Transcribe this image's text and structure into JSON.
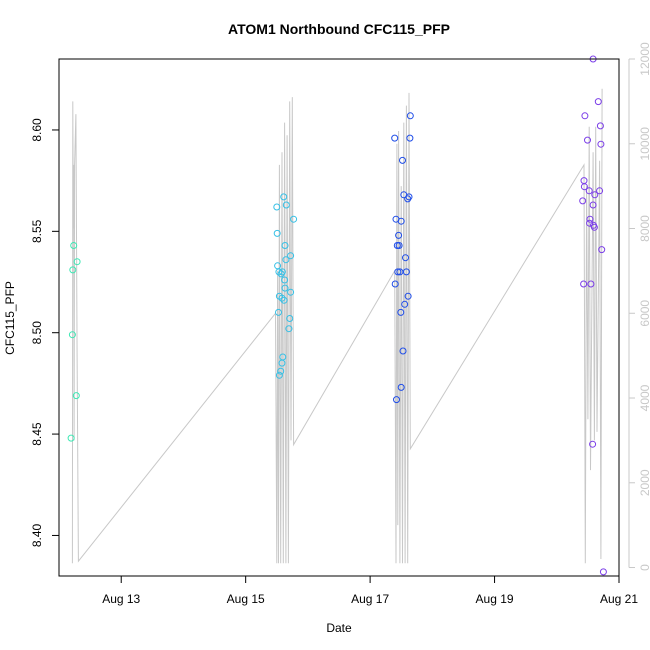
{
  "chart_data": {
    "type": "scatter",
    "title": "ATOM1 Northbound CFC115_PFP",
    "xlabel": "Date",
    "ylabel": "CFC115_PFP",
    "x_axis_type": "date",
    "xlim": [
      "2018-08-12T00:00",
      "2018-08-21T00:00"
    ],
    "ylim": [
      8.38,
      8.635
    ],
    "y2lim": [
      -200,
      12000
    ],
    "x_ticks": [
      {
        "date": "2018-08-13T00:00",
        "label": "Aug 13"
      },
      {
        "date": "2018-08-15T00:00",
        "label": "Aug 15"
      },
      {
        "date": "2018-08-17T00:00",
        "label": "Aug 17"
      },
      {
        "date": "2018-08-19T00:00",
        "label": "Aug 19"
      },
      {
        "date": "2018-08-21T00:00",
        "label": "Aug 21"
      }
    ],
    "y_ticks": [
      8.4,
      8.45,
      8.5,
      8.55,
      8.6
    ],
    "y_tick_labels": [
      "8.40",
      "8.45",
      "8.50",
      "8.55",
      "8.60"
    ],
    "y2_ticks": [
      0,
      2000,
      4000,
      6000,
      8000,
      10000,
      12000
    ],
    "y2_tick_labels": [
      "0",
      "2000",
      "4000",
      "6000",
      "8000",
      "10000",
      "12000"
    ],
    "grid": false,
    "line_color": "#c8c8c8",
    "secondary_series": [
      [
        "2018-08-12T05:10",
        100
      ],
      [
        "2018-08-12T05:20",
        11000
      ],
      [
        "2018-08-12T05:30",
        8000
      ],
      [
        "2018-08-12T05:40",
        9500
      ],
      [
        "2018-08-12T05:50",
        3000
      ],
      [
        "2018-08-12T06:00",
        9500
      ],
      [
        "2018-08-12T06:30",
        10700
      ],
      [
        "2018-08-12T07:00",
        5000
      ],
      [
        "2018-08-12T07:30",
        150
      ],
      [
        "2018-08-15T11:30",
        6000
      ],
      [
        "2018-08-15T12:00",
        100
      ],
      [
        "2018-08-15T12:20",
        7000
      ],
      [
        "2018-08-15T12:40",
        100
      ],
      [
        "2018-08-15T13:00",
        9500
      ],
      [
        "2018-08-15T13:30",
        100
      ],
      [
        "2018-08-15T14:00",
        9800
      ],
      [
        "2018-08-15T14:30",
        100
      ],
      [
        "2018-08-15T15:00",
        10500
      ],
      [
        "2018-08-15T15:30",
        100
      ],
      [
        "2018-08-15T16:00",
        10200
      ],
      [
        "2018-08-15T16:30",
        100
      ],
      [
        "2018-08-15T17:00",
        11000
      ],
      [
        "2018-08-15T17:30",
        3000
      ],
      [
        "2018-08-15T18:00",
        11100
      ],
      [
        "2018-08-15T18:30",
        2900
      ],
      [
        "2018-08-17T09:30",
        7000
      ],
      [
        "2018-08-17T10:00",
        100
      ],
      [
        "2018-08-17T10:20",
        10000
      ],
      [
        "2018-08-17T10:40",
        1000
      ],
      [
        "2018-08-17T11:00",
        10300
      ],
      [
        "2018-08-17T11:30",
        100
      ],
      [
        "2018-08-17T12:00",
        9000
      ],
      [
        "2018-08-17T12:30",
        100
      ],
      [
        "2018-08-17T13:00",
        10500
      ],
      [
        "2018-08-17T13:30",
        100
      ],
      [
        "2018-08-17T14:00",
        10900
      ],
      [
        "2018-08-17T14:30",
        100
      ],
      [
        "2018-08-17T15:00",
        11200
      ],
      [
        "2018-08-17T15:30",
        2800
      ],
      [
        "2018-08-20T10:30",
        9500
      ],
      [
        "2018-08-20T11:00",
        100
      ],
      [
        "2018-08-20T11:30",
        9000
      ],
      [
        "2018-08-20T12:00",
        3500
      ],
      [
        "2018-08-20T12:30",
        10400
      ],
      [
        "2018-08-20T13:00",
        2300
      ],
      [
        "2018-08-20T14:00",
        9800
      ],
      [
        "2018-08-20T14:30",
        3000
      ],
      [
        "2018-08-20T15:00",
        10400
      ],
      [
        "2018-08-20T15:30",
        3200
      ],
      [
        "2018-08-20T16:30",
        9600
      ],
      [
        "2018-08-20T17:00",
        200
      ],
      [
        "2018-08-20T17:30",
        11300
      ]
    ],
    "series": [
      {
        "color": "#3ee8b4",
        "points": [
          [
            "2018-08-12T05:40",
            8.543
          ],
          [
            "2018-08-12T05:20",
            8.531
          ],
          [
            "2018-08-12T07:00",
            8.535
          ],
          [
            "2018-08-12T05:10",
            8.499
          ],
          [
            "2018-08-12T06:40",
            8.469
          ],
          [
            "2018-08-12T04:40",
            8.448
          ]
        ]
      },
      {
        "color": "#36c0e6",
        "points": [
          [
            "2018-08-15T12:00",
            8.562
          ],
          [
            "2018-08-15T12:10",
            8.549
          ],
          [
            "2018-08-15T12:20",
            8.533
          ],
          [
            "2018-08-15T12:50",
            8.53
          ],
          [
            "2018-08-15T13:40",
            8.529
          ],
          [
            "2018-08-15T13:00",
            8.518
          ],
          [
            "2018-08-15T12:40",
            8.51
          ],
          [
            "2018-08-15T14:00",
            8.517
          ],
          [
            "2018-08-15T14:40",
            8.567
          ],
          [
            "2018-08-15T15:40",
            8.563
          ],
          [
            "2018-08-15T15:10",
            8.543
          ],
          [
            "2018-08-15T15:30",
            8.536
          ],
          [
            "2018-08-15T17:20",
            8.538
          ],
          [
            "2018-08-15T18:30",
            8.556
          ],
          [
            "2018-08-15T14:10",
            8.53
          ],
          [
            "2018-08-15T15:00",
            8.526
          ],
          [
            "2018-08-15T15:10",
            8.522
          ],
          [
            "2018-08-15T17:00",
            8.507
          ],
          [
            "2018-08-15T16:40",
            8.502
          ],
          [
            "2018-08-15T14:50",
            8.516
          ],
          [
            "2018-08-15T17:20",
            8.52
          ],
          [
            "2018-08-15T14:20",
            8.488
          ],
          [
            "2018-08-15T14:00",
            8.485
          ],
          [
            "2018-08-15T13:30",
            8.481
          ],
          [
            "2018-08-15T13:00",
            8.479
          ]
        ]
      },
      {
        "color": "#1f4de8",
        "points": [
          [
            "2018-08-17T09:30",
            8.596
          ],
          [
            "2018-08-17T15:30",
            8.607
          ],
          [
            "2018-08-17T15:20",
            8.596
          ],
          [
            "2018-08-17T12:30",
            8.585
          ],
          [
            "2018-08-17T13:00",
            8.568
          ],
          [
            "2018-08-17T14:30",
            8.566
          ],
          [
            "2018-08-17T15:00",
            8.567
          ],
          [
            "2018-08-17T10:00",
            8.556
          ],
          [
            "2018-08-17T12:00",
            8.555
          ],
          [
            "2018-08-17T11:00",
            8.548
          ],
          [
            "2018-08-17T10:30",
            8.543
          ],
          [
            "2018-08-17T11:10",
            8.543
          ],
          [
            "2018-08-17T13:40",
            8.537
          ],
          [
            "2018-08-17T10:40",
            8.53
          ],
          [
            "2018-08-17T11:30",
            8.53
          ],
          [
            "2018-08-17T14:00",
            8.53
          ],
          [
            "2018-08-17T09:40",
            8.524
          ],
          [
            "2018-08-17T14:40",
            8.518
          ],
          [
            "2018-08-17T13:20",
            8.514
          ],
          [
            "2018-08-17T11:50",
            8.51
          ],
          [
            "2018-08-17T12:40",
            8.491
          ],
          [
            "2018-08-17T12:00",
            8.473
          ],
          [
            "2018-08-17T10:10",
            8.467
          ]
        ]
      },
      {
        "color": "#7b3ee8",
        "points": [
          [
            "2018-08-20T14:00",
            8.635
          ],
          [
            "2018-08-20T16:00",
            8.614
          ],
          [
            "2018-08-20T10:50",
            8.607
          ],
          [
            "2018-08-20T16:50",
            8.602
          ],
          [
            "2018-08-20T11:50",
            8.595
          ],
          [
            "2018-08-20T17:00",
            8.593
          ],
          [
            "2018-08-20T10:30",
            8.575
          ],
          [
            "2018-08-20T10:40",
            8.572
          ],
          [
            "2018-08-20T12:30",
            8.57
          ],
          [
            "2018-08-20T16:30",
            8.57
          ],
          [
            "2018-08-20T14:40",
            8.568
          ],
          [
            "2018-08-20T10:00",
            8.565
          ],
          [
            "2018-08-20T14:00",
            8.563
          ],
          [
            "2018-08-20T12:50",
            8.556
          ],
          [
            "2018-08-20T12:40",
            8.554
          ],
          [
            "2018-08-20T14:10",
            8.553
          ],
          [
            "2018-08-20T14:30",
            8.552
          ],
          [
            "2018-08-20T17:20",
            8.541
          ],
          [
            "2018-08-20T10:20",
            8.524
          ],
          [
            "2018-08-20T13:10",
            8.524
          ],
          [
            "2018-08-20T13:50",
            8.445
          ],
          [
            "2018-08-20T18:00",
            8.382
          ]
        ]
      }
    ]
  }
}
